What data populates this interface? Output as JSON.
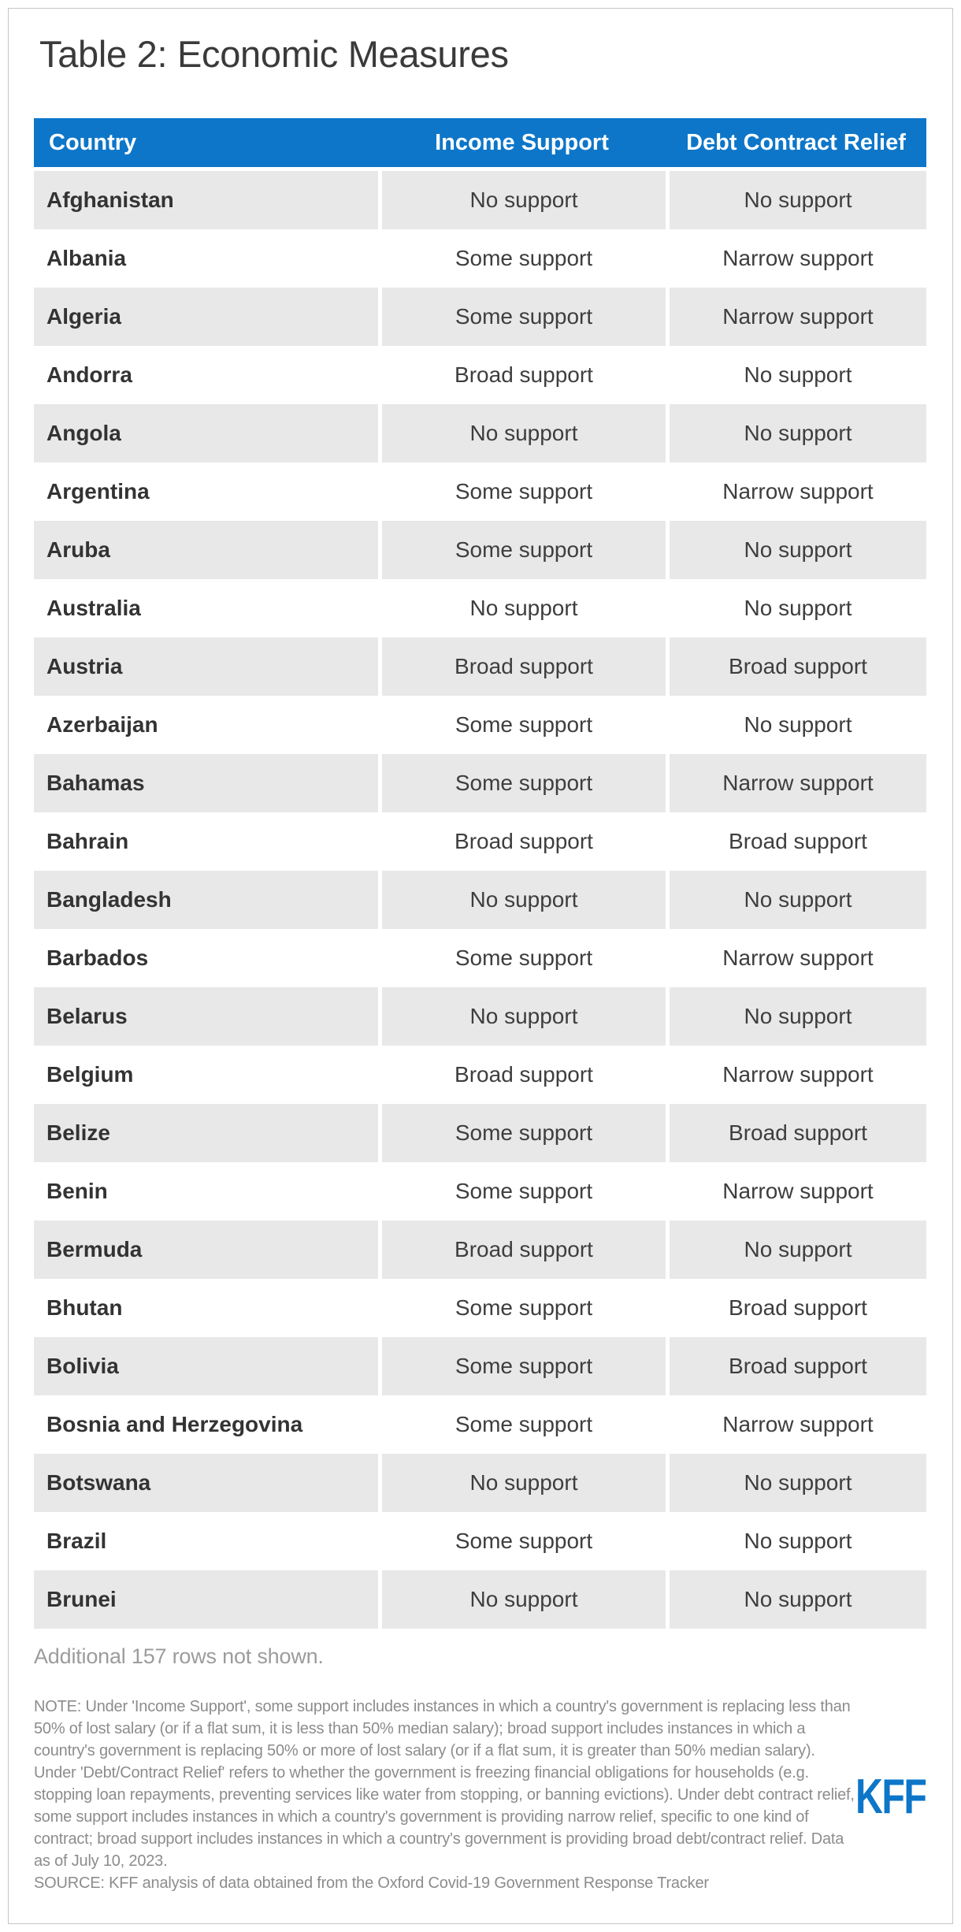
{
  "chart_data": {
    "type": "table",
    "title": "Table 2: Economic Measures",
    "columns": [
      "Country",
      "Income Support",
      "Debt Contract Relief"
    ],
    "rows": [
      [
        "Afghanistan",
        "No support",
        "No support"
      ],
      [
        "Albania",
        "Some support",
        "Narrow support"
      ],
      [
        "Algeria",
        "Some support",
        "Narrow support"
      ],
      [
        "Andorra",
        "Broad support",
        "No support"
      ],
      [
        "Angola",
        "No support",
        "No support"
      ],
      [
        "Argentina",
        "Some support",
        "Narrow support"
      ],
      [
        "Aruba",
        "Some support",
        "No support"
      ],
      [
        "Australia",
        "No support",
        "No support"
      ],
      [
        "Austria",
        "Broad support",
        "Broad support"
      ],
      [
        "Azerbaijan",
        "Some support",
        "No support"
      ],
      [
        "Bahamas",
        "Some support",
        "Narrow support"
      ],
      [
        "Bahrain",
        "Broad support",
        "Broad support"
      ],
      [
        "Bangladesh",
        "No support",
        "No support"
      ],
      [
        "Barbados",
        "Some support",
        "Narrow support"
      ],
      [
        "Belarus",
        "No support",
        "No support"
      ],
      [
        "Belgium",
        "Broad support",
        "Narrow support"
      ],
      [
        "Belize",
        "Some support",
        "Broad support"
      ],
      [
        "Benin",
        "Some support",
        "Narrow support"
      ],
      [
        "Bermuda",
        "Broad support",
        "No support"
      ],
      [
        "Bhutan",
        "Some support",
        "Broad support"
      ],
      [
        "Bolivia",
        "Some support",
        "Broad support"
      ],
      [
        "Bosnia and Herzegovina",
        "Some support",
        "Narrow support"
      ],
      [
        "Botswana",
        "No support",
        "No support"
      ],
      [
        "Brazil",
        "Some support",
        "No support"
      ],
      [
        "Brunei",
        "No support",
        "No support"
      ]
    ],
    "additional_rows_note": "Additional 157 rows not shown.",
    "note": "NOTE: Under 'Income Support', some support includes instances in which a country's government is replacing less than 50% of lost salary (or if a flat sum, it is less than 50% median salary); broad support includes instances in which a country's government is replacing 50% or more of lost salary (or if a flat sum, it is greater than 50% median salary). Under 'Debt/Contract Relief' refers to whether the government is freezing financial obligations for households (e.g. stopping loan repayments, preventing services like water from stopping, or banning evictions). Under debt contract relief, some support includes instances in which a country's government is providing narrow relief, specific to one kind of contract; broad support includes instances in which a country's government is providing broad debt/contract relief. Data as of July 10, 2023.",
    "source": "SOURCE: KFF analysis of data obtained from the Oxford Covid-19 Government Response Tracker"
  },
  "branding": {
    "logo_text": "KFF"
  },
  "colors": {
    "header_blue": "#0d76c9",
    "header_text": "#ffffff",
    "row_stripe": "#e8e8e8",
    "country_text": "#333333",
    "value_text": "#3e3e3e",
    "additional_text": "#9c9c9c",
    "note_text": "#8c8c8c",
    "logo_blue": "#0d76c9",
    "page_border": "#c5c5c5"
  }
}
